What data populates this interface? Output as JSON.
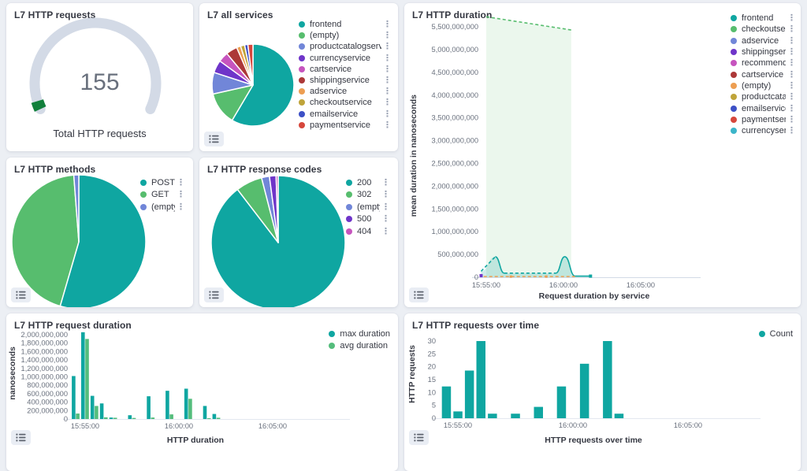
{
  "page": {
    "background": "#ECEFF4",
    "panel_background": "#FFFFFF"
  },
  "icons": {
    "legend_actions_glyph": "⋮",
    "legend_actions_name": "boxes-vertical-icon",
    "legend_toggle_name": "legend-list-icon"
  },
  "chart_data": [
    {
      "id": "gauge",
      "type": "gauge",
      "title": "L7 HTTP requests",
      "value": 155,
      "value_display": "155",
      "caption": "Total HTTP requests",
      "track_color": "#D3DAE6",
      "fill_color": "#12803C",
      "fill_fraction": 0.035
    },
    {
      "id": "all_services",
      "type": "pie",
      "title": "L7 all services",
      "slices": [
        {
          "label": "frontend",
          "color": "#0FA6A1",
          "share_pct": 58.5
        },
        {
          "label": "(empty)",
          "color": "#57BD6E",
          "share_pct": 13.0
        },
        {
          "label": "productcatalogservice",
          "color": "#7186D8",
          "share_pct": 8.5
        },
        {
          "label": "currencyservice",
          "color": "#6F35C9",
          "share_pct": 5.0
        },
        {
          "label": "cartservice",
          "color": "#C654BE",
          "share_pct": 4.0
        },
        {
          "label": "shippingservice",
          "color": "#AC3838",
          "share_pct": 4.5
        },
        {
          "label": "adservice",
          "color": "#ED9E52",
          "share_pct": 1.6
        },
        {
          "label": "checkoutservice",
          "color": "#BFA43A",
          "share_pct": 1.6
        },
        {
          "label": "emailservice",
          "color": "#3D50C6",
          "share_pct": 1.3
        },
        {
          "label": "paymentservice",
          "color": "#D6473C",
          "share_pct": 2.0
        }
      ]
    },
    {
      "id": "http_duration",
      "type": "line",
      "title": "L7 HTTP duration",
      "ylabel": "mean duration in nanoseconds",
      "xlabel": "Request duration by service",
      "ylim": [
        0,
        5750000000
      ],
      "yticks": [
        "0",
        "500,000,000",
        "1,000,000,000",
        "1,500,000,000",
        "2,000,000,000",
        "2,500,000,000",
        "3,000,000,000",
        "3,500,000,000",
        "4,000,000,000",
        "4,500,000,000",
        "5,000,000,000",
        "5,500,000,000"
      ],
      "xticks": [
        "15:55:00",
        "16:00:00",
        "16:05:00"
      ],
      "legend": [
        {
          "label": "frontend",
          "color": "#0FA6A1"
        },
        {
          "label": "checkoutservice",
          "color": "#57BD6E"
        },
        {
          "label": "adservice",
          "color": "#7186D8"
        },
        {
          "label": "shippingservice",
          "color": "#6F35C9"
        },
        {
          "label": "recommendationservice",
          "color": "#C654BE"
        },
        {
          "label": "cartservice",
          "color": "#AC3838"
        },
        {
          "label": "(empty)",
          "color": "#ED9E52"
        },
        {
          "label": "productcatalogservice",
          "color": "#BFA43A"
        },
        {
          "label": "emailservice",
          "color": "#3D50C6"
        },
        {
          "label": "paymentservice",
          "color": "#D6473C"
        },
        {
          "label": "currencyservice",
          "color": "#3BB5C9"
        }
      ],
      "series": [
        {
          "name": "checkoutservice",
          "color": "#57BD6E",
          "style": "dashed-area",
          "points": [
            [
              "15:55:00",
              5720000000
            ],
            [
              "16:00:30",
              5430000000
            ]
          ]
        },
        {
          "name": "frontend",
          "color": "#0FA6A1",
          "style": "line-area",
          "points": [
            [
              "15:54:40",
              130000000
            ],
            [
              "15:55:35",
              450000000
            ],
            [
              "15:56:10",
              90000000
            ],
            [
              "15:59:30",
              90000000
            ],
            [
              "16:00:05",
              450000000
            ],
            [
              "16:00:45",
              25000000
            ],
            [
              "16:01:45",
              25000000
            ]
          ]
        },
        {
          "name": "(empty)",
          "color": "#ED9E52",
          "style": "dashed",
          "points": [
            [
              "15:54:50",
              15000000
            ],
            [
              "16:00:45",
              15000000
            ]
          ]
        },
        {
          "name": "shippingservice",
          "color": "#6F35C9",
          "style": "point",
          "points": [
            [
              "15:54:40",
              35000000
            ]
          ]
        }
      ]
    },
    {
      "id": "http_methods",
      "type": "pie",
      "title": "L7 HTTP methods",
      "slices": [
        {
          "label": "POST",
          "color": "#0FA6A1",
          "share_pct": 54.5
        },
        {
          "label": "GET",
          "color": "#57BD6E",
          "share_pct": 44.3
        },
        {
          "label": "(empty)",
          "color": "#7186D8",
          "share_pct": 1.2
        }
      ]
    },
    {
      "id": "http_response_codes",
      "type": "pie",
      "title": "L7 HTTP response codes",
      "slices": [
        {
          "label": "200",
          "color": "#0FA6A1",
          "share_pct": 89.6
        },
        {
          "label": "302",
          "color": "#57BD6E",
          "share_pct": 6.4
        },
        {
          "label": "(empty)",
          "color": "#7186D8",
          "share_pct": 1.9
        },
        {
          "label": "500",
          "color": "#6F35C9",
          "share_pct": 1.6
        },
        {
          "label": "404",
          "color": "#C654BE",
          "share_pct": 0.5
        }
      ]
    },
    {
      "id": "http_request_duration",
      "type": "bar",
      "title": "L7 HTTP request duration",
      "ylabel": "nanoseconds",
      "xlabel": "HTTP duration",
      "ylim": [
        0,
        2000000000
      ],
      "yticks": [
        "0",
        "200,000,000",
        "400,000,000",
        "600,000,000",
        "800,000,000",
        "1,000,000,000",
        "1,200,000,000",
        "1,400,000,000",
        "1,600,000,000",
        "1,800,000,000",
        "2,000,000,000"
      ],
      "xticks": [
        "15:55:00",
        "16:00:00",
        "16:05:00"
      ],
      "categories": [
        "15:54:30",
        "15:55:00",
        "15:55:30",
        "15:56:00",
        "15:56:30",
        "15:57:30",
        "15:58:30",
        "15:59:30",
        "16:00:30",
        "16:01:30",
        "16:02:00"
      ],
      "series": [
        {
          "name": "max duration",
          "color": "#0FA6A1",
          "values": [
            1020000000,
            2060000000,
            550000000,
            370000000,
            35000000,
            90000000,
            540000000,
            670000000,
            720000000,
            310000000,
            120000000
          ]
        },
        {
          "name": "avg duration",
          "color": "#54BD7C",
          "values": [
            130000000,
            1900000000,
            310000000,
            40000000,
            30000000,
            25000000,
            35000000,
            110000000,
            480000000,
            20000000,
            30000000
          ]
        }
      ]
    },
    {
      "id": "http_requests_over_time",
      "type": "bar",
      "title": "L7 HTTP requests over time",
      "ylabel": "HTTP requests",
      "xlabel": "HTTP requests over time",
      "ylim": [
        0,
        34
      ],
      "yticks": [
        "0",
        "5",
        "10",
        "15",
        "20",
        "25",
        "30"
      ],
      "xticks": [
        "15:55:00",
        "16:00:00",
        "16:05:00"
      ],
      "categories": [
        "15:54:30",
        "15:55:00",
        "15:55:30",
        "15:56:00",
        "15:56:30",
        "15:57:30",
        "15:58:30",
        "15:59:30",
        "16:00:30",
        "16:01:30",
        "16:02:00"
      ],
      "series": [
        {
          "name": "Count",
          "color": "#0FA6A1",
          "values": [
            14,
            3,
            21,
            34,
            2,
            2,
            5,
            14,
            24,
            34,
            2
          ]
        }
      ]
    }
  ]
}
